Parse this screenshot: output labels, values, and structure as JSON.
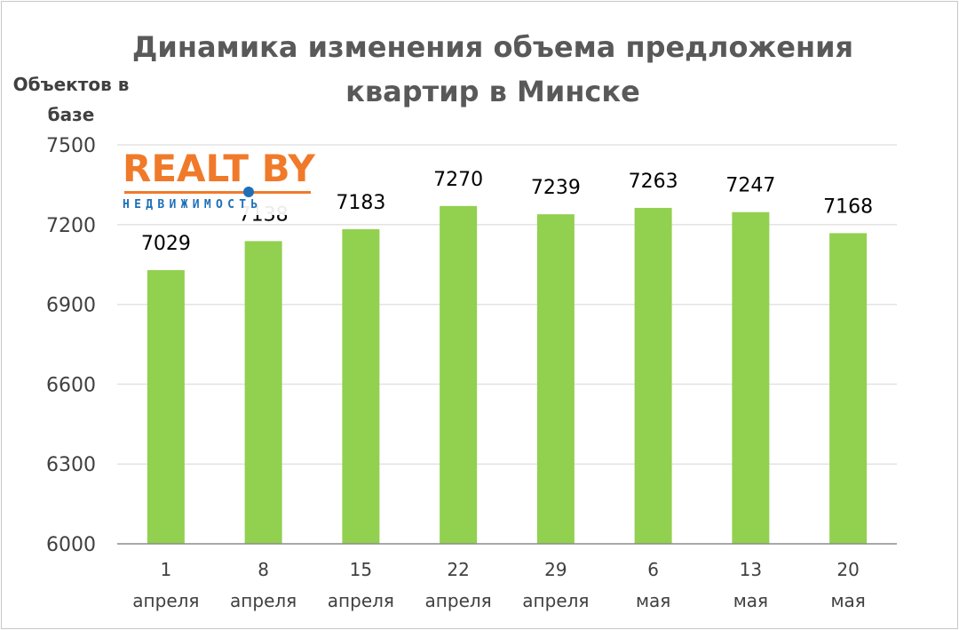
{
  "chart_data": {
    "type": "bar",
    "title": "Динамика изменения объема предложения квартир в Минске",
    "ylabel": "Объектов в базе",
    "xlabel": "",
    "ylim": [
      6000,
      7500
    ],
    "yticks": [
      "7500",
      "7200",
      "6900",
      "6600",
      "6300",
      "6000"
    ],
    "ytick_values": [
      7500,
      7200,
      6900,
      6600,
      6300,
      6000
    ],
    "categories": [
      {
        "day": "1",
        "month": "апреля"
      },
      {
        "day": "8",
        "month": "апреля"
      },
      {
        "day": "15",
        "month": "апреля"
      },
      {
        "day": "22",
        "month": "апреля"
      },
      {
        "day": "29",
        "month": "апреля"
      },
      {
        "day": "6",
        "month": "мая"
      },
      {
        "day": "13",
        "month": "мая"
      },
      {
        "day": "20",
        "month": "мая"
      }
    ],
    "values": [
      7029,
      7138,
      7183,
      7270,
      7239,
      7263,
      7247,
      7168
    ],
    "data_labels": [
      "7029",
      "7138",
      "7183",
      "7270",
      "7239",
      "7263",
      "7247",
      "7168"
    ],
    "grid": true,
    "legend": "none",
    "bar_color": "#92d050",
    "grid_color": "#e3e3e3",
    "axis_color": "#8c8c8c"
  },
  "logo": {
    "name": "realty-logo",
    "word": "REALT BY",
    "sub": "НЕДВИЖИМОСТЬ",
    "color_main": "#f07a2a",
    "color_accent": "#1f6fb8"
  }
}
